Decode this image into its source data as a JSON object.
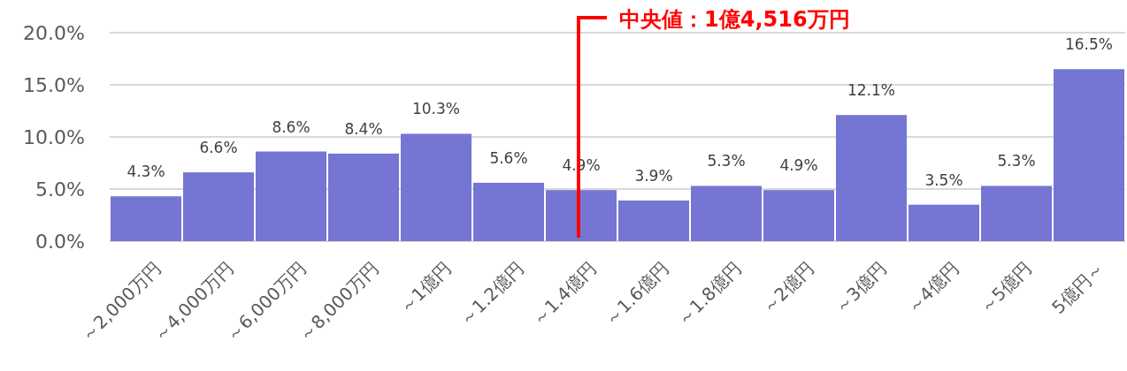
{
  "chart_data": {
    "type": "bar",
    "categories": [
      "～2,000万円",
      "～4,000万円",
      "～6,000万円",
      "～8,000万円",
      "～1億円",
      "～1.2億円",
      "～1.4億円",
      "～1.6億円",
      "～1.8億円",
      "～2億円",
      "～3億円",
      "～4億円",
      "～5億円",
      "5億円～"
    ],
    "values": [
      4.3,
      6.6,
      8.6,
      8.4,
      10.3,
      5.6,
      4.9,
      3.9,
      5.3,
      4.9,
      12.1,
      3.5,
      5.3,
      16.5
    ],
    "value_labels": [
      "4.3%",
      "6.6%",
      "8.6%",
      "8.4%",
      "10.3%",
      "5.6%",
      "4.9%",
      "3.9%",
      "5.3%",
      "4.9%",
      "12.1%",
      "3.5%",
      "5.3%",
      "16.5%"
    ],
    "color": "#7575d3",
    "ylim": [
      0,
      20
    ],
    "yticks": [
      {
        "value": 0,
        "label": "0.0%"
      },
      {
        "value": 5,
        "label": "5.0%"
      },
      {
        "value": 10,
        "label": "10.0%"
      },
      {
        "value": 15,
        "label": "15.0%"
      },
      {
        "value": 20,
        "label": "20.0%"
      }
    ],
    "grid": "y",
    "ref_lines": [
      {
        "axis": "x",
        "value": "～1.4億円",
        "label": "中央値：1億4,516万円",
        "color": "#ff0000"
      }
    ]
  }
}
